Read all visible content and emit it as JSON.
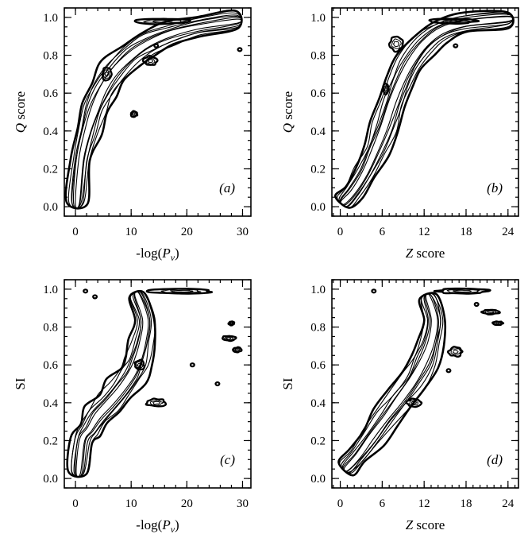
{
  "chart_data": [
    {
      "type": "contour",
      "panel_label": "(a)",
      "xlabel": "-log(Pv)",
      "ylabel": "Q score",
      "xlim": [
        -2,
        31.5
      ],
      "ylim": [
        -0.05,
        1.05
      ],
      "xticks": [
        0,
        10,
        20,
        30
      ],
      "xticklabels": [
        "0",
        "10",
        "20",
        "30"
      ],
      "yticks": [
        0.0,
        0.2,
        0.4,
        0.6,
        0.8,
        1.0
      ],
      "yticklabels": [
        "0.0",
        "0.2",
        "0.4",
        "0.6",
        "0.8",
        "1.0"
      ],
      "x_minor_step": 2,
      "y_minor_step": 0.05,
      "ridge": [
        [
          0.3,
          0.02
        ],
        [
          1.0,
          0.25
        ],
        [
          2.2,
          0.4
        ],
        [
          3.5,
          0.52
        ],
        [
          5.0,
          0.62
        ],
        [
          7.0,
          0.71
        ],
        [
          10.0,
          0.8
        ],
        [
          13.0,
          0.86
        ],
        [
          17.0,
          0.91
        ],
        [
          22.0,
          0.95
        ],
        [
          29.0,
          0.98
        ]
      ],
      "blobs": [
        {
          "x": 5.6,
          "y": 0.7,
          "w": 1.6,
          "h": 0.07
        },
        {
          "x": 13.5,
          "y": 0.77,
          "w": 2.4,
          "h": 0.05
        },
        {
          "x": 10.5,
          "y": 0.49,
          "w": 1.2,
          "h": 0.03
        },
        {
          "x": 15.5,
          "y": 0.98,
          "w": 10.0,
          "h": 0.03
        }
      ],
      "dots": [
        [
          14.5,
          0.85
        ],
        [
          29.5,
          0.83
        ]
      ]
    },
    {
      "type": "contour",
      "panel_label": "(b)",
      "xlabel": "Z score",
      "ylabel": "Q score",
      "xlim": [
        -1.2,
        25.5
      ],
      "ylim": [
        -0.05,
        1.05
      ],
      "xticks": [
        0,
        6,
        12,
        18,
        24
      ],
      "xticklabels": [
        "0",
        "6",
        "12",
        "18",
        "24"
      ],
      "yticks": [
        0.0,
        0.2,
        0.4,
        0.6,
        0.8,
        1.0
      ],
      "yticklabels": [
        "0.0",
        "0.2",
        "0.4",
        "0.6",
        "0.8",
        "1.0"
      ],
      "x_minor_step": 1,
      "y_minor_step": 0.05,
      "ridge": [
        [
          0.4,
          0.02
        ],
        [
          1.8,
          0.08
        ],
        [
          3.5,
          0.18
        ],
        [
          5.0,
          0.3
        ],
        [
          6.3,
          0.42
        ],
        [
          7.5,
          0.55
        ],
        [
          8.7,
          0.66
        ],
        [
          10.0,
          0.76
        ],
        [
          12.0,
          0.86
        ],
        [
          14.5,
          0.93
        ],
        [
          18.0,
          0.97
        ],
        [
          24.0,
          0.99
        ]
      ],
      "blobs": [
        {
          "x": 8.0,
          "y": 0.86,
          "w": 2.0,
          "h": 0.08
        },
        {
          "x": 16.0,
          "y": 0.98,
          "w": 7.0,
          "h": 0.025
        },
        {
          "x": 6.5,
          "y": 0.62,
          "w": 0.8,
          "h": 0.06
        }
      ],
      "dots": [
        [
          16.5,
          0.85
        ]
      ]
    },
    {
      "type": "contour",
      "panel_label": "(c)",
      "xlabel": "-log(Pv)",
      "ylabel": "SI",
      "xlim": [
        -2,
        31.5
      ],
      "ylim": [
        -0.05,
        1.05
      ],
      "xticks": [
        0,
        10,
        20,
        30
      ],
      "xticklabels": [
        "0",
        "10",
        "20",
        "30"
      ],
      "yticks": [
        0.0,
        0.2,
        0.4,
        0.6,
        0.8,
        1.0
      ],
      "yticklabels": [
        "0.0",
        "0.2",
        "0.4",
        "0.6",
        "0.8",
        "1.0"
      ],
      "x_minor_step": 2,
      "y_minor_step": 0.05,
      "ridge": [
        [
          0.5,
          0.03
        ],
        [
          1.2,
          0.2
        ],
        [
          2.5,
          0.26
        ],
        [
          4.0,
          0.33
        ],
        [
          6.0,
          0.4
        ],
        [
          8.0,
          0.47
        ],
        [
          10.0,
          0.55
        ],
        [
          11.0,
          0.62
        ],
        [
          12.0,
          0.72
        ],
        [
          12.5,
          0.84
        ],
        [
          11.0,
          0.97
        ]
      ],
      "blobs": [
        {
          "x": 14.5,
          "y": 0.4,
          "w": 3.5,
          "h": 0.04
        },
        {
          "x": 19.0,
          "y": 0.99,
          "w": 11.0,
          "h": 0.025
        },
        {
          "x": 27.5,
          "y": 0.74,
          "w": 2.5,
          "h": 0.025
        },
        {
          "x": 28.0,
          "y": 0.82,
          "w": 1.0,
          "h": 0.02
        },
        {
          "x": 29.0,
          "y": 0.68,
          "w": 1.5,
          "h": 0.025
        },
        {
          "x": 11.5,
          "y": 0.6,
          "w": 1.8,
          "h": 0.05
        }
      ],
      "dots": [
        [
          1.8,
          0.99
        ],
        [
          25.5,
          0.5
        ],
        [
          21.0,
          0.6
        ],
        [
          3.5,
          0.96
        ]
      ]
    },
    {
      "type": "contour",
      "panel_label": "(d)",
      "xlabel": "Z score",
      "ylabel": "SI",
      "xlim": [
        -1.2,
        25.5
      ],
      "ylim": [
        -0.05,
        1.05
      ],
      "xticks": [
        0,
        6,
        12,
        18,
        24
      ],
      "xticklabels": [
        "0",
        "6",
        "12",
        "18",
        "24"
      ],
      "yticks": [
        0.0,
        0.2,
        0.4,
        0.6,
        0.8,
        1.0
      ],
      "yticklabels": [
        "0.0",
        "0.2",
        "0.4",
        "0.6",
        "0.8",
        "1.0"
      ],
      "x_minor_step": 1,
      "y_minor_step": 0.05,
      "ridge": [
        [
          0.8,
          0.05
        ],
        [
          2.5,
          0.12
        ],
        [
          4.5,
          0.22
        ],
        [
          6.5,
          0.32
        ],
        [
          8.5,
          0.42
        ],
        [
          10.5,
          0.52
        ],
        [
          12.0,
          0.62
        ],
        [
          13.0,
          0.72
        ],
        [
          13.5,
          0.84
        ],
        [
          12.5,
          0.96
        ]
      ],
      "blobs": [
        {
          "x": 17.5,
          "y": 0.99,
          "w": 7.5,
          "h": 0.025
        },
        {
          "x": 21.5,
          "y": 0.88,
          "w": 2.5,
          "h": 0.025
        },
        {
          "x": 22.5,
          "y": 0.82,
          "w": 1.5,
          "h": 0.02
        },
        {
          "x": 16.5,
          "y": 0.67,
          "w": 2.0,
          "h": 0.05
        },
        {
          "x": 10.5,
          "y": 0.4,
          "w": 2.0,
          "h": 0.04
        }
      ],
      "dots": [
        [
          19.5,
          0.92
        ],
        [
          4.8,
          0.99
        ],
        [
          15.5,
          0.57
        ]
      ]
    }
  ]
}
